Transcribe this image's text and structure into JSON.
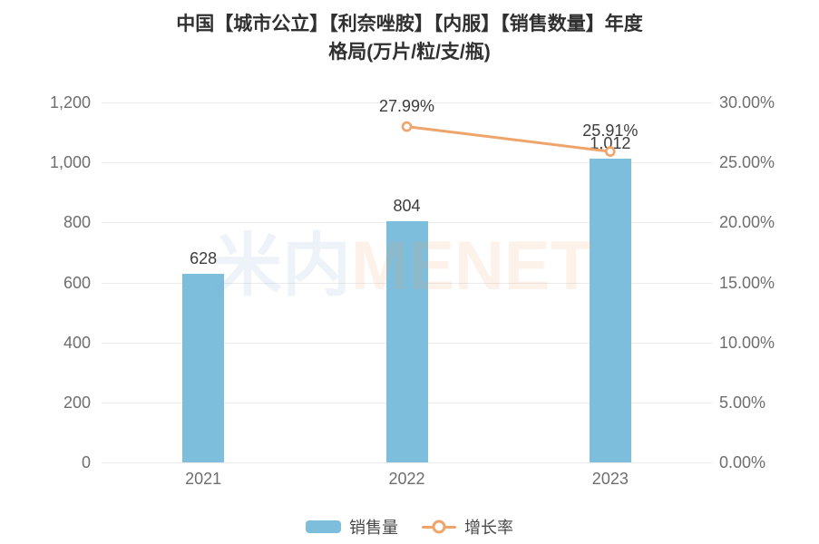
{
  "title": {
    "line1": "中国【城市公立】【利奈唑胺】【内服】【销售数量】年度",
    "line2": "格局(万片/粒/支/瓶)"
  },
  "watermark": {
    "part1": "米内",
    "part2": "MENET"
  },
  "colors": {
    "bar": "#7CBEDC",
    "line": "#EFA46B",
    "marker_fill": "#FFFFFF",
    "title_text": "#303030",
    "axis_text": "#6E6E6E",
    "label_text": "#3C3C3C",
    "gridline": "#EBEBEB",
    "legend_text": "#4A4A4A",
    "watermark_cjk": "rgba(140,180,215,0.16)",
    "watermark_latin": "rgba(244,170,110,0.15)"
  },
  "chart_data": {
    "type": "bar+line combo",
    "title": "中国【城市公立】【利奈唑胺】【内服】【销售数量】年度格局(万片/粒/支/瓶)",
    "categories": [
      "2021",
      "2022",
      "2023"
    ],
    "series": [
      {
        "name": "销售量",
        "type": "bar",
        "axis": "left",
        "values": [
          628,
          804,
          1012
        ],
        "labels": [
          "628",
          "804",
          "1,012"
        ]
      },
      {
        "name": "增长率",
        "type": "line",
        "axis": "right",
        "values": [
          null,
          27.99,
          25.91
        ],
        "labels": [
          null,
          "27.99%",
          "25.91%"
        ]
      }
    ],
    "left_axis": {
      "min": 0,
      "max": 1200,
      "tick_labels_top_to_bottom": [
        "1,200",
        "1,000",
        "800",
        "600",
        "400",
        "200",
        "0"
      ]
    },
    "right_axis": {
      "min": 0,
      "max": 30,
      "tick_labels_top_to_bottom": [
        "30.00%",
        "25.00%",
        "20.00%",
        "15.00%",
        "10.00%",
        "5.00%",
        "0.00%"
      ]
    },
    "grid": true,
    "legend_position": "bottom"
  }
}
